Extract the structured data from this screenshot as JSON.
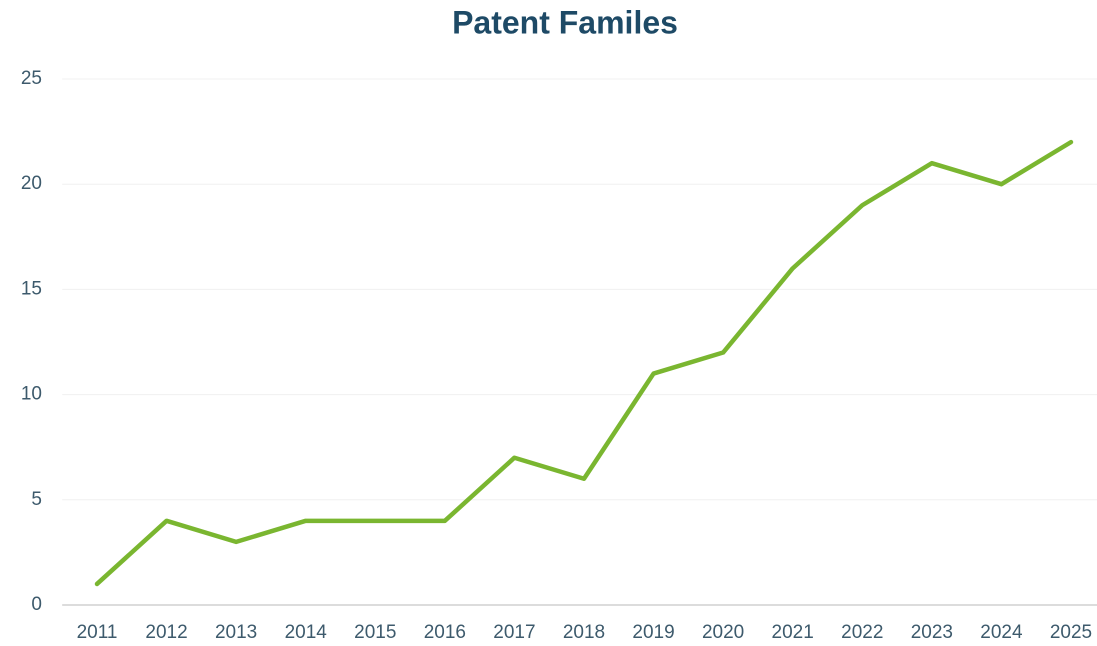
{
  "chart_data": {
    "type": "line",
    "title": "Patent Familes",
    "categories": [
      "2011",
      "2012",
      "2013",
      "2014",
      "2015",
      "2016",
      "2017",
      "2018",
      "2019",
      "2020",
      "2021",
      "2022",
      "2023",
      "2024",
      "2025"
    ],
    "series": [
      {
        "color": "#7ab630",
        "values": [
          1,
          4,
          3,
          4,
          4,
          4,
          7,
          6,
          11,
          12,
          16,
          19,
          21,
          20,
          22
        ]
      }
    ],
    "ylim": [
      0,
      25
    ],
    "yticks": [
      0,
      5,
      10,
      15,
      20,
      25
    ],
    "grid": true
  }
}
